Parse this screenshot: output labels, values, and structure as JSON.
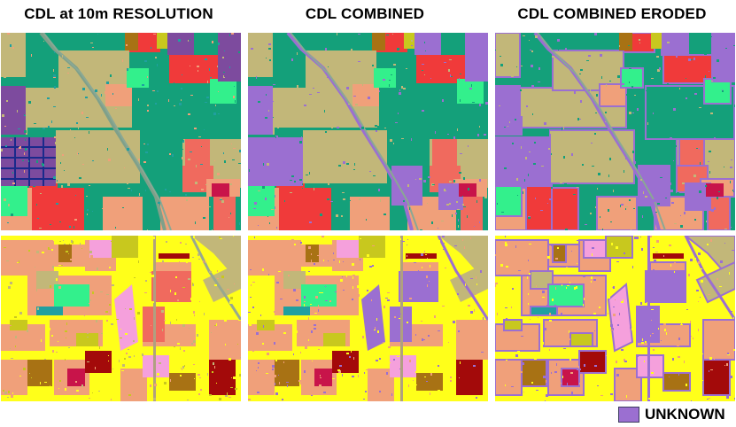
{
  "titles": {
    "col1": "CDL at 10m RESOLUTION",
    "col2": "CDL COMBINED",
    "col3": "CDL COMBINED ERODED"
  },
  "legend": {
    "label": "UNKNOWN",
    "color": "#9b6fd1"
  },
  "palette": {
    "dark_green": "#14a07a",
    "khaki": "#c2b779",
    "red": "#f03a3a",
    "salmon": "#f0a07a",
    "light_green": "#33f08c",
    "purple": "#7d4b9e",
    "navy": "#1a2a8c",
    "yellow": "#ffff1a",
    "pink": "#f5a0dc",
    "brown": "#a87214",
    "dark_red": "#a30a0a",
    "olive": "#c8c81e",
    "unknown": "#9b6fd1",
    "coral": "#f06a5e",
    "crimson": "#c8144a",
    "teal": "#20a0a0"
  }
}
